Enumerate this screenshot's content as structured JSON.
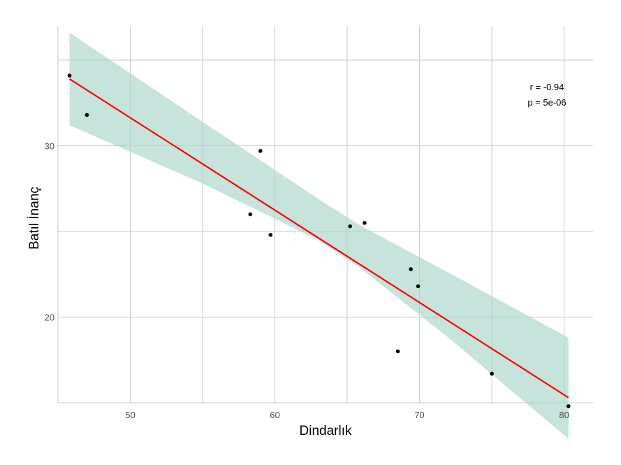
{
  "chart_data": {
    "type": "scatter",
    "title": "",
    "xlabel": "Dindarlık",
    "ylabel": "Batıl İnanç",
    "xlim": [
      45.0,
      82.0
    ],
    "ylim": [
      15.0,
      37.0
    ],
    "x_ticks": [
      50,
      60,
      70,
      80
    ],
    "y_ticks": [
      20,
      30
    ],
    "x_minor_gridlines": [
      45,
      55,
      65,
      75
    ],
    "y_minor_gridlines": [
      15,
      25,
      35
    ],
    "grid": true,
    "points": [
      {
        "x": 45.8,
        "y": 34.1
      },
      {
        "x": 47.0,
        "y": 31.8
      },
      {
        "x": 58.3,
        "y": 26.0
      },
      {
        "x": 59.0,
        "y": 29.7
      },
      {
        "x": 59.7,
        "y": 24.8
      },
      {
        "x": 65.2,
        "y": 25.3
      },
      {
        "x": 66.2,
        "y": 25.5
      },
      {
        "x": 68.5,
        "y": 18.0
      },
      {
        "x": 69.4,
        "y": 22.8
      },
      {
        "x": 69.9,
        "y": 21.8
      },
      {
        "x": 75.0,
        "y": 16.7
      },
      {
        "x": 80.3,
        "y": 14.8
      }
    ],
    "regression": {
      "x_start": 45.8,
      "y_start": 33.9,
      "x_end": 80.3,
      "y_end": 15.3,
      "color": "#ff0000"
    },
    "confidence_band": {
      "color": "#a8d5c9",
      "x": [
        45.8,
        55.0,
        63.0,
        66.0,
        72.0,
        80.3
      ],
      "upper": [
        36.6,
        31.4,
        26.9,
        25.3,
        22.6,
        18.8
      ],
      "lower": [
        31.2,
        27.8,
        24.5,
        22.8,
        18.8,
        12.9
      ]
    },
    "point_color": "#000000",
    "annotations": [
      "r = -0.94",
      "p = 5e-06"
    ]
  }
}
